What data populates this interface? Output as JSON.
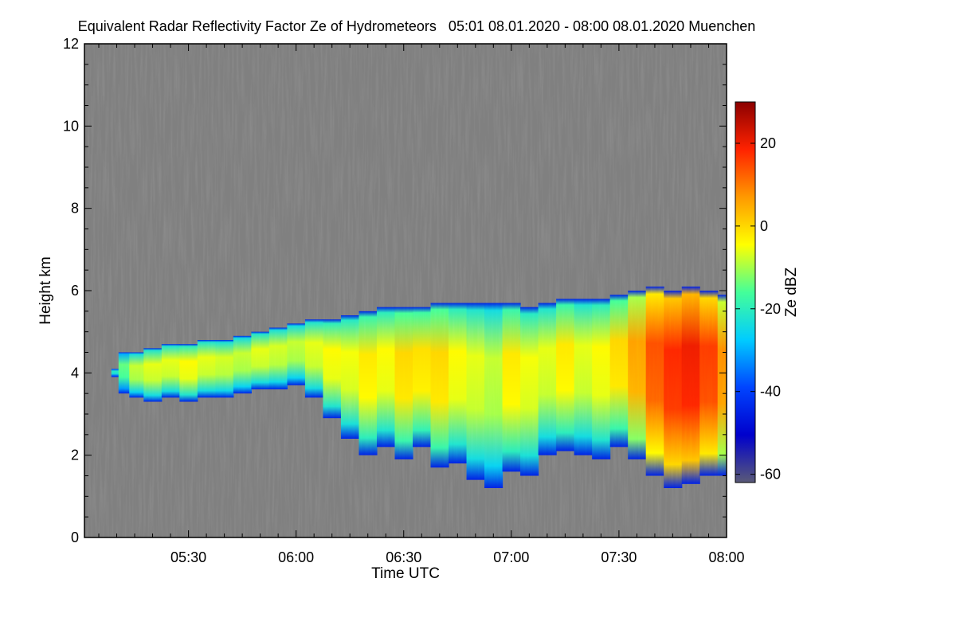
{
  "chart_data": {
    "type": "heatmap",
    "title": "Equivalent Radar Reflectivity Factor Ze of Hydrometeors   05:01 08.01.2020 - 08:00 08.01.2020 Muenchen",
    "xlabel": "Time UTC",
    "ylabel": "Height km",
    "colorbar_label": "Ze dBZ",
    "background_color": "#808080",
    "xlim_minutes_utc": [
      301,
      480
    ],
    "x_ticks": [
      {
        "minute": 330,
        "label": "05:30"
      },
      {
        "minute": 360,
        "label": "06:00"
      },
      {
        "minute": 390,
        "label": "06:30"
      },
      {
        "minute": 420,
        "label": "07:00"
      },
      {
        "minute": 450,
        "label": "07:30"
      },
      {
        "minute": 480,
        "label": "08:00"
      }
    ],
    "ylim": [
      0,
      12
    ],
    "y_ticks": [
      {
        "value": 0,
        "label": "0"
      },
      {
        "value": 2,
        "label": "2"
      },
      {
        "value": 4,
        "label": "4"
      },
      {
        "value": 6,
        "label": "6"
      },
      {
        "value": 8,
        "label": "8"
      },
      {
        "value": 10,
        "label": "10"
      },
      {
        "value": 12,
        "label": "12"
      }
    ],
    "colorbar_range": [
      -62,
      30
    ],
    "colorbar_ticks": [
      {
        "value": 20,
        "label": "20"
      },
      {
        "value": 0,
        "label": "0"
      },
      {
        "value": -20,
        "label": "-20"
      },
      {
        "value": -40,
        "label": "-40"
      },
      {
        "value": -60,
        "label": "-60"
      }
    ],
    "colormap": [
      "#5a5a78",
      "#0000cc",
      "#0044ff",
      "#00ccff",
      "#44ff99",
      "#ffff00",
      "#ff9900",
      "#ff2200",
      "#8b0000"
    ],
    "echo_layer": {
      "description_units": "minute UTC, km, dBZ",
      "minutes": [
        309,
        312,
        315,
        320,
        325,
        330,
        335,
        340,
        345,
        350,
        355,
        360,
        365,
        370,
        375,
        380,
        385,
        390,
        395,
        400,
        405,
        410,
        415,
        420,
        425,
        430,
        435,
        440,
        445,
        450,
        455,
        460,
        465,
        470,
        475,
        480
      ],
      "top_km": [
        4.1,
        4.5,
        4.5,
        4.6,
        4.7,
        4.7,
        4.8,
        4.8,
        4.9,
        5.0,
        5.1,
        5.2,
        5.3,
        5.3,
        5.4,
        5.5,
        5.6,
        5.6,
        5.6,
        5.7,
        5.7,
        5.7,
        5.7,
        5.7,
        5.6,
        5.7,
        5.8,
        5.8,
        5.8,
        5.9,
        6.0,
        6.1,
        6.0,
        6.1,
        6.0,
        5.9
      ],
      "base_km": [
        3.9,
        3.5,
        3.4,
        3.3,
        3.4,
        3.3,
        3.4,
        3.4,
        3.5,
        3.6,
        3.6,
        3.7,
        3.4,
        2.9,
        2.4,
        2.0,
        2.2,
        1.9,
        2.2,
        1.7,
        1.8,
        1.4,
        1.2,
        1.6,
        1.5,
        2.0,
        2.1,
        2.0,
        1.9,
        2.2,
        1.9,
        1.5,
        1.2,
        1.3,
        1.5,
        1.5
      ],
      "mean_dbz": [
        -25,
        -18,
        -12,
        -10,
        -10,
        -8,
        -10,
        -11,
        -12,
        -10,
        -11,
        -12,
        -10,
        -8,
        -9,
        -6,
        -8,
        -4,
        -5,
        -4,
        -8,
        -10,
        -12,
        -6,
        -9,
        -10,
        -6,
        -10,
        -8,
        -4,
        2,
        10,
        14,
        16,
        12,
        4
      ]
    }
  }
}
